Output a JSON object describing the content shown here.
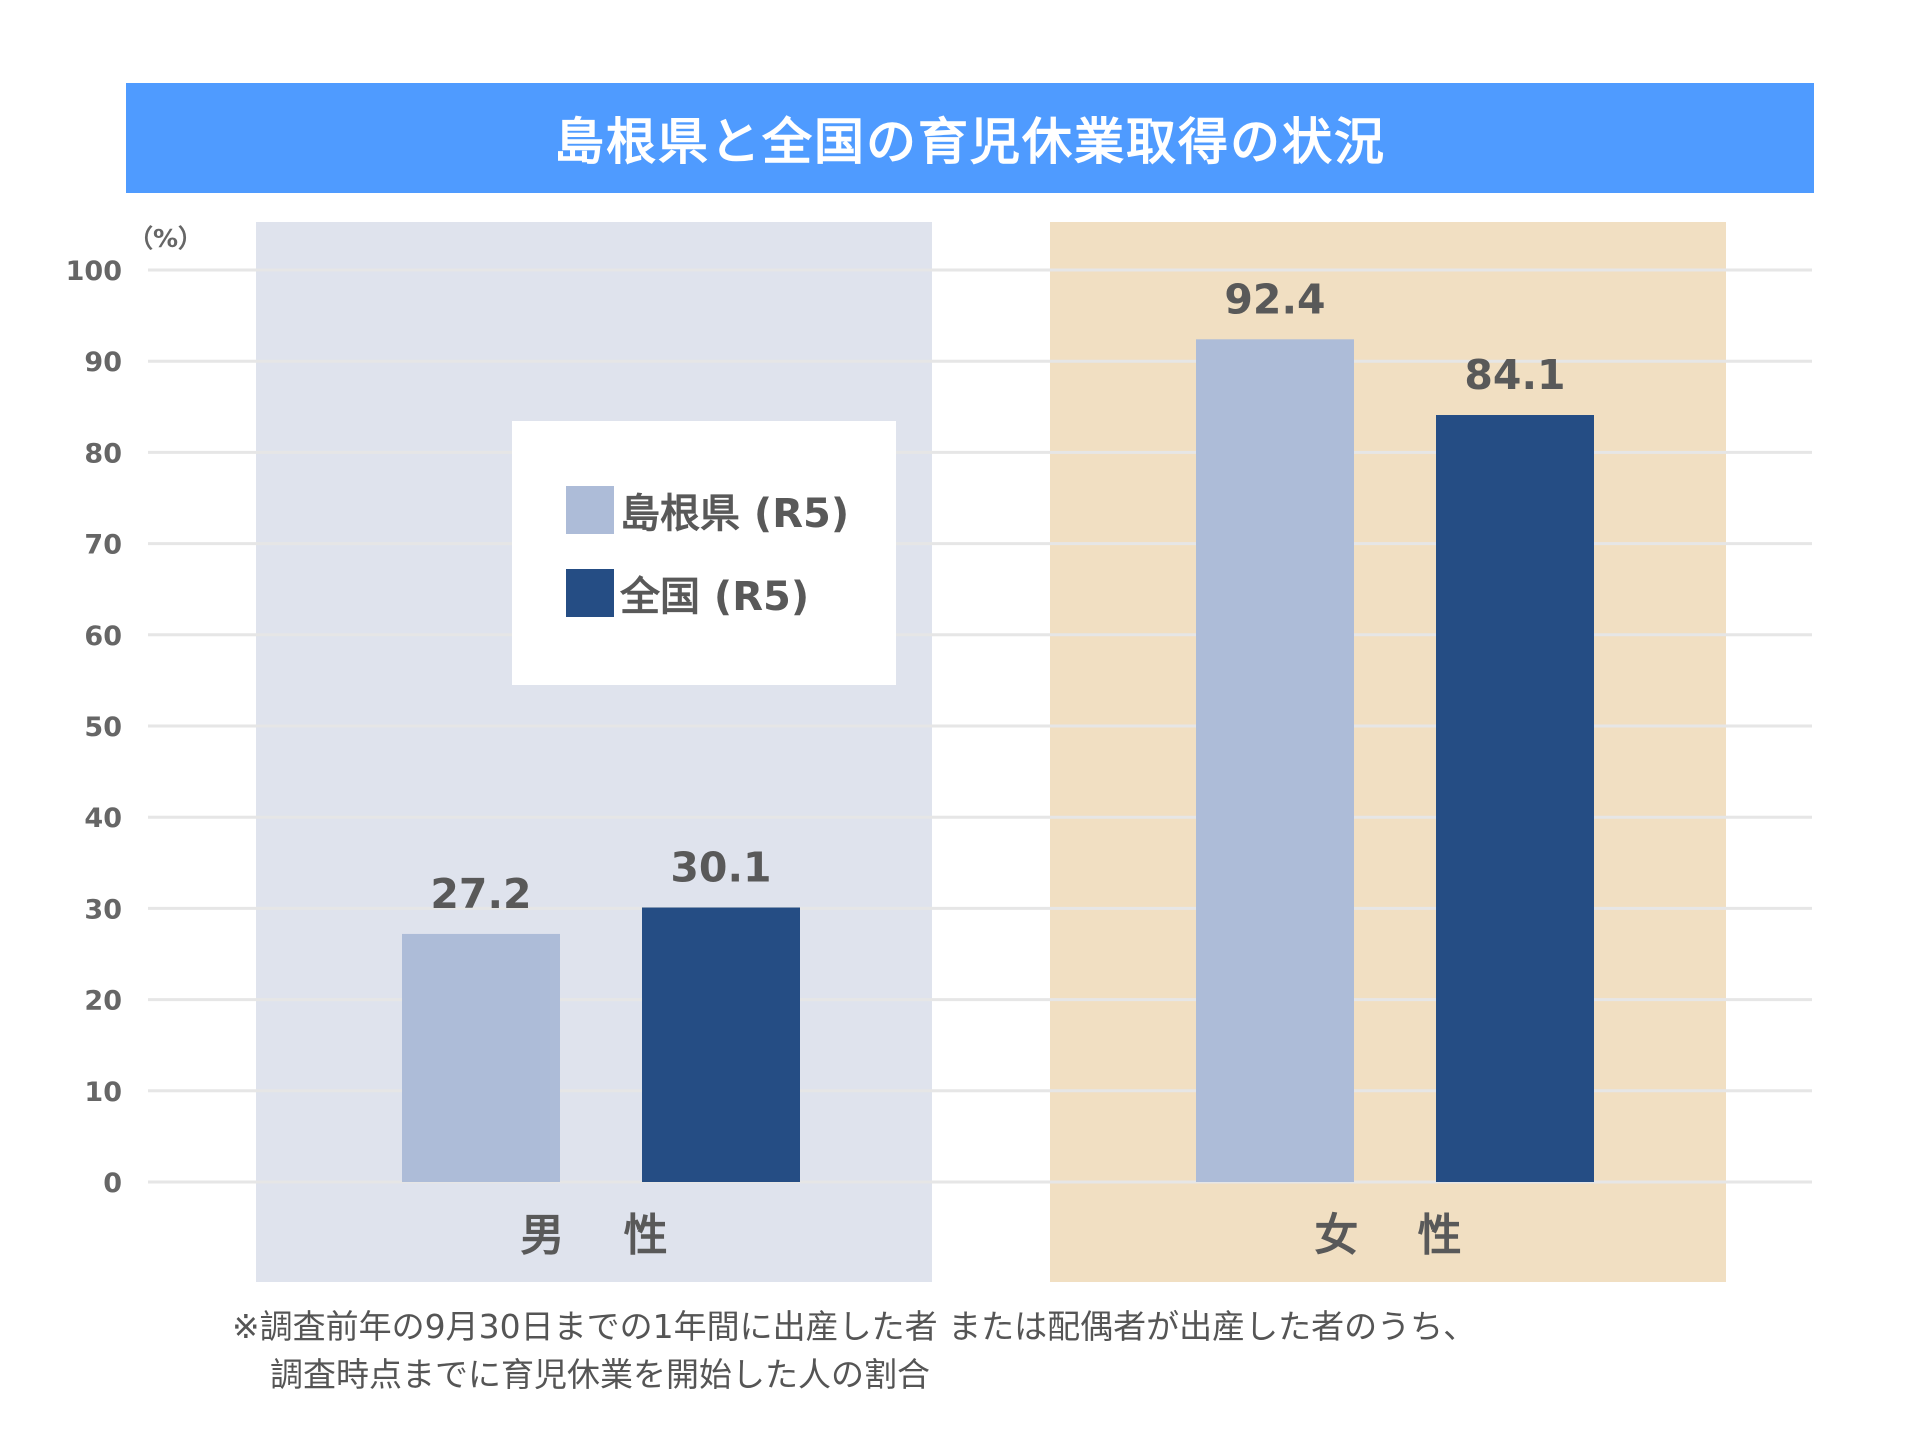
{
  "title": "島根県と全国の育児休業取得の状況",
  "unit_label": "（%）",
  "colors": {
    "title_bg": "#4f9bff",
    "panel_male": "#dfe3ed",
    "panel_female": "#f1dfc2",
    "shimane": "#adbcd8",
    "national": "#254d84",
    "grid": "#e6e6e6",
    "text": "#595959"
  },
  "chart_data": {
    "type": "bar",
    "title": "島根県と全国の育児休業取得の状況",
    "ylabel": "（%）",
    "ylim": [
      0,
      100
    ],
    "yticks": [
      0,
      10,
      20,
      30,
      40,
      50,
      60,
      70,
      80,
      90,
      100
    ],
    "grid": true,
    "legend_position": "inside-left",
    "categories": [
      "男 性",
      "女 性"
    ],
    "series": [
      {
        "name": "島根県 (R5)",
        "color": "#adbcd8",
        "values": [
          27.2,
          92.4
        ],
        "labels": [
          "27.2",
          "92.4"
        ]
      },
      {
        "name": "全国 (R5)",
        "color": "#254d84",
        "values": [
          30.1,
          84.1
        ],
        "labels": [
          "30.1",
          "84.1"
        ]
      }
    ]
  },
  "legend": {
    "items": [
      {
        "label": "島根県 (R5)",
        "color": "#adbcd8"
      },
      {
        "label": "全国 (R5)",
        "color": "#254d84"
      }
    ]
  },
  "footnote": {
    "line1": "※調査前年の9月30日までの1年間に出産した者 または配偶者が出産した者のうち、",
    "line2": "調査時点までに育児休業を開始した人の割合"
  }
}
